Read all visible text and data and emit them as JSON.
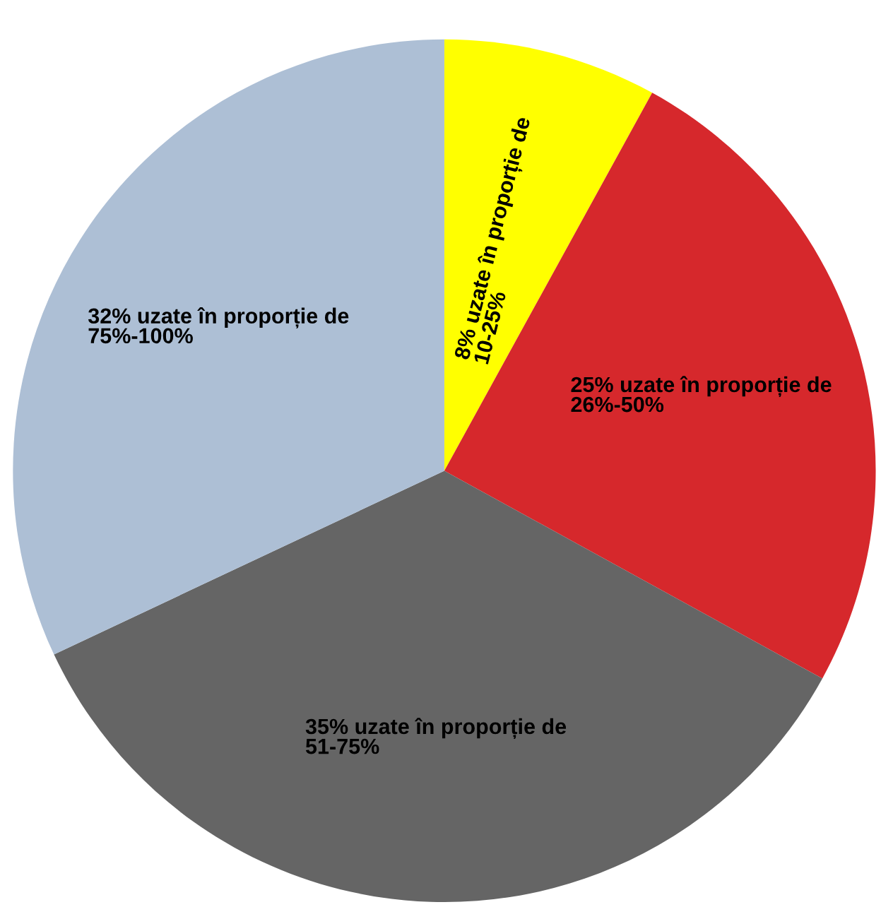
{
  "chart_data": {
    "type": "pie",
    "categories": [
      "8% uzate în proporție de\n10-25%",
      "25% uzate în proporție de\n26%-50%",
      "35% uzate în proporție de\n51-75%",
      "32% uzate în proporție de\n75%-100%"
    ],
    "values": [
      8,
      25,
      35,
      32
    ],
    "colors": [
      "#ffff00",
      "#d6282c",
      "#656565",
      "#adbfd5"
    ]
  }
}
